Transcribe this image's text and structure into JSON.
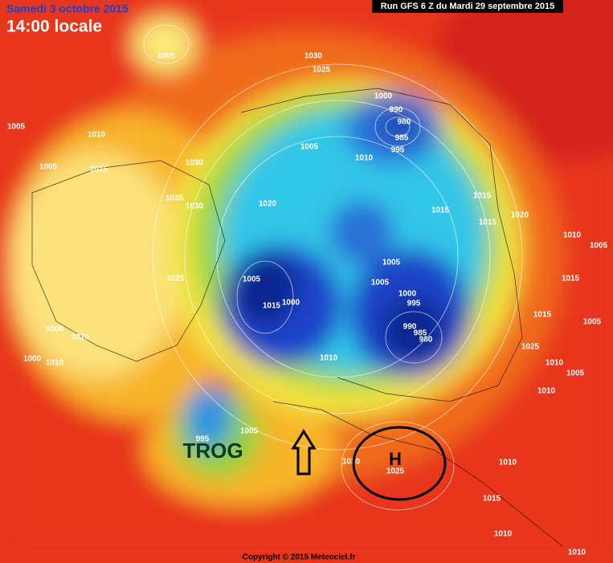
{
  "header": {
    "date": "Samedi 3 octobre 2015",
    "time": "14:00 locale",
    "run": "Run GFS 6 Z du Mardi 29 septembre 2015"
  },
  "annotations": {
    "trough": "TROG",
    "high": "H"
  },
  "isobar_labels": [
    1005,
    1030,
    1025,
    1000,
    990,
    980,
    985,
    995,
    1005,
    1010,
    1005,
    1010,
    1005,
    1015,
    1030,
    1035,
    1030,
    1020,
    1015,
    1015,
    1015,
    1020,
    1010,
    1005,
    1005,
    1005,
    1025,
    1015,
    1005,
    1000,
    995,
    1000,
    1015,
    1015,
    1005,
    990,
    985,
    980,
    1010,
    1000,
    1010,
    1025,
    1010,
    1005,
    1000,
    1010,
    1010,
    995,
    1005,
    1020,
    1025,
    1010,
    1015,
    1010,
    1010
  ],
  "copyright": "Copyright © 2015 Meteociel.fr"
}
